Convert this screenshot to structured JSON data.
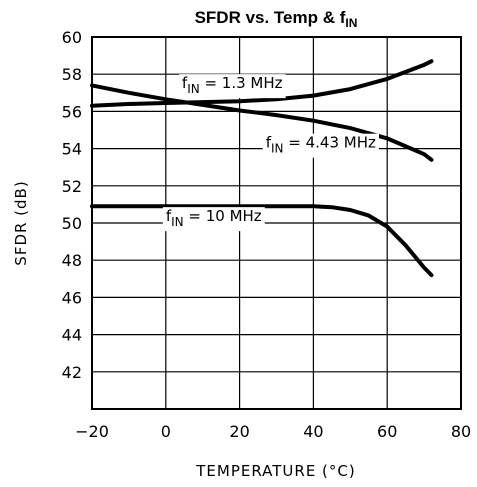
{
  "chart_data": {
    "type": "line",
    "title": "SFDR vs. Temp & f",
    "title_subscript": "IN",
    "xlabel": "TEMPERATURE (°C)",
    "ylabel": "SFDR (dB)",
    "xlim": [
      -20,
      80
    ],
    "ylim": [
      40,
      60
    ],
    "xticks": [
      -20,
      0,
      20,
      40,
      60,
      80
    ],
    "yticks": [
      42,
      44,
      46,
      48,
      50,
      52,
      54,
      56,
      58,
      60
    ],
    "grid": true,
    "legend": "none",
    "series": [
      {
        "name": "fIN = 1.3 MHz",
        "label_prefix": "f",
        "label_sub": "IN",
        "label_suffix": " = 1.3 MHz",
        "color": "#000000",
        "x": [
          -20,
          -10,
          0,
          10,
          20,
          30,
          40,
          50,
          60,
          70,
          72
        ],
        "y": [
          56.3,
          56.4,
          56.45,
          56.5,
          56.55,
          56.65,
          56.85,
          57.2,
          57.75,
          58.5,
          58.7
        ]
      },
      {
        "name": "fIN = 4.43 MHz",
        "label_prefix": "f",
        "label_sub": "IN",
        "label_suffix": " = 4.43 MHz",
        "color": "#000000",
        "x": [
          -20,
          -10,
          0,
          10,
          20,
          30,
          40,
          50,
          60,
          70,
          72
        ],
        "y": [
          57.4,
          57.0,
          56.65,
          56.35,
          56.05,
          55.8,
          55.5,
          55.1,
          54.55,
          53.7,
          53.4
        ]
      },
      {
        "name": "fIN = 10 MHz",
        "label_prefix": "f",
        "label_sub": "IN",
        "label_suffix": " = 10 MHz",
        "color": "#000000",
        "x": [
          -20,
          -10,
          0,
          10,
          20,
          30,
          40,
          45,
          50,
          55,
          60,
          65,
          70,
          72
        ],
        "y": [
          50.9,
          50.9,
          50.9,
          50.9,
          50.9,
          50.9,
          50.9,
          50.85,
          50.7,
          50.4,
          49.8,
          48.8,
          47.6,
          47.2
        ]
      }
    ]
  }
}
